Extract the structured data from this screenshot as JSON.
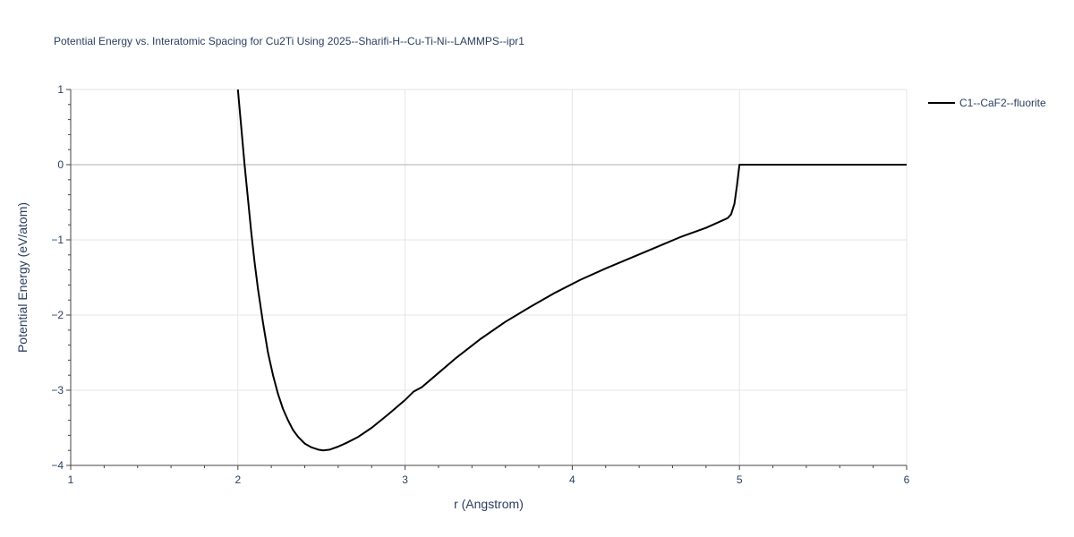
{
  "colors": {
    "background": "#ffffff",
    "grid": "#e5e5e5",
    "zero_line": "#c8c8c8",
    "axis": "#444444",
    "text": "#2a3f5f",
    "series": "#000000"
  },
  "chart_data": {
    "type": "line",
    "title": "Potential Energy vs. Interatomic Spacing for Cu2Ti Using 2025--Sharifi-H--Cu-Ti-Ni--LAMMPS--ipr1",
    "xlabel": "r (Angstrom)",
    "ylabel": "Potential Energy (eV/atom)",
    "xlim": [
      1,
      6
    ],
    "ylim": [
      -4,
      1
    ],
    "xticks": [
      1,
      2,
      3,
      4,
      5,
      6
    ],
    "xtick_labels": [
      "1",
      "2",
      "3",
      "4",
      "5",
      "6"
    ],
    "yticks": [
      1,
      0,
      -1,
      -2,
      -3,
      -4
    ],
    "ytick_labels": [
      "1",
      "0",
      "−1",
      "−2",
      "−3",
      "−4"
    ],
    "grid": true,
    "legend_position": "top-right",
    "series": [
      {
        "name": "C1--CaF2--fluorite",
        "color": "#000000",
        "x": [
          2.0,
          2.02,
          2.04,
          2.06,
          2.08,
          2.1,
          2.12,
          2.15,
          2.18,
          2.21,
          2.24,
          2.27,
          2.3,
          2.33,
          2.36,
          2.4,
          2.44,
          2.48,
          2.51,
          2.55,
          2.6,
          2.65,
          2.72,
          2.8,
          2.9,
          3.0,
          3.05,
          3.1,
          3.2,
          3.3,
          3.45,
          3.6,
          3.75,
          3.9,
          4.05,
          4.2,
          4.35,
          4.5,
          4.65,
          4.8,
          4.9,
          4.93,
          4.95,
          4.97,
          4.985,
          5.0,
          5.2,
          5.5,
          6.0
        ],
        "y": [
          1.0,
          0.5,
          0.0,
          -0.45,
          -0.9,
          -1.3,
          -1.65,
          -2.1,
          -2.5,
          -2.8,
          -3.05,
          -3.25,
          -3.4,
          -3.53,
          -3.62,
          -3.71,
          -3.76,
          -3.79,
          -3.8,
          -3.79,
          -3.75,
          -3.7,
          -3.62,
          -3.5,
          -3.32,
          -3.13,
          -3.02,
          -2.96,
          -2.77,
          -2.58,
          -2.32,
          -2.09,
          -1.89,
          -1.7,
          -1.53,
          -1.38,
          -1.24,
          -1.1,
          -0.96,
          -0.84,
          -0.74,
          -0.71,
          -0.66,
          -0.52,
          -0.28,
          0.0,
          0.0,
          0.0,
          0.0
        ]
      }
    ]
  }
}
